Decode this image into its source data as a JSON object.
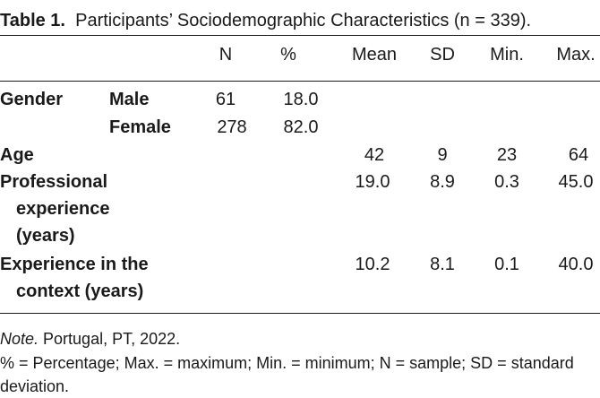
{
  "title": {
    "number": "Table 1.",
    "text": "Participants’ Sociodemographic Characteristics (n = 339)."
  },
  "columns": [
    "N",
    "%",
    "Mean",
    "SD",
    "Min.",
    "Max."
  ],
  "rows": {
    "gender": {
      "label": "Gender",
      "male": {
        "label": "Male",
        "n": "61",
        "pct": "18.0"
      },
      "female": {
        "label": "Female",
        "n": "278",
        "pct": "82.0"
      }
    },
    "age": {
      "label": "Age",
      "mean": "42",
      "sd": "9",
      "min": "23",
      "max": "64"
    },
    "professional": {
      "label_lines": [
        "Professional",
        "experience",
        "(years)"
      ],
      "mean": "19.0",
      "sd": "8.9",
      "min": "0.3",
      "max": "45.0"
    },
    "context": {
      "label_lines": [
        "Experience in the",
        "context (years)"
      ],
      "mean": "10.2",
      "sd": "8.1",
      "min": "0.1",
      "max": "40.0"
    }
  },
  "note": {
    "label": "Note.",
    "text": " Portugal, PT, 2022.",
    "abbrev": "% = Percentage; Max. = maximum; Min. = minimum; N = sample; SD = standard deviation."
  }
}
